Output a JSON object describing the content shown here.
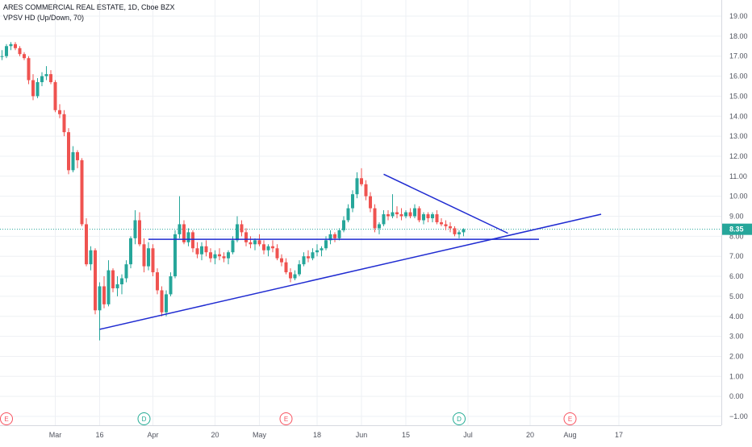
{
  "header": {
    "symbol_title": "ARES COMMERCIAL REAL ESTATE, 1D, Cboe BZX",
    "indicator": "VPSV HD (Up/Down, 70)"
  },
  "price_badge": "8.35",
  "colors": {
    "up": "#26a69a",
    "down": "#ef5350",
    "trendline": "#1f2bd1",
    "grid": "#eef0f4",
    "badge": "#26a69a",
    "axis_text": "#50535e"
  },
  "chart_data": {
    "type": "candlestick",
    "title": "ARES COMMERCIAL REAL ESTATE, 1D, Cboe BZX",
    "ylim": [
      -1.3,
      19.3
    ],
    "y_ticks": [
      -1,
      0,
      1,
      2,
      3,
      4,
      5,
      6,
      7,
      8,
      9,
      10,
      11,
      12,
      13,
      14,
      15,
      16,
      17,
      18,
      19
    ],
    "y_tick_labels": [
      "−1.00",
      "0.00",
      "1.00",
      "2.00",
      "3.00",
      "4.00",
      "5.00",
      "6.00",
      "7.00",
      "8.00",
      "9.00",
      "10.00",
      "11.00",
      "12.00",
      "13.00",
      "14.00",
      "15.00",
      "16.00",
      "17.00",
      "18.00",
      "19.00"
    ],
    "x_ticks": [
      {
        "label": "Mar",
        "bar": 12
      },
      {
        "label": "16",
        "bar": 22
      },
      {
        "label": "Apr",
        "bar": 34
      },
      {
        "label": "20",
        "bar": 48
      },
      {
        "label": "May",
        "bar": 58
      },
      {
        "label": "18",
        "bar": 71
      },
      {
        "label": "Jun",
        "bar": 81
      },
      {
        "label": "15",
        "bar": 91
      },
      {
        "label": "Jul",
        "bar": 105
      },
      {
        "label": "20",
        "bar": 119
      },
      {
        "label": "Aug",
        "bar": 128
      },
      {
        "label": "17",
        "bar": 139
      }
    ],
    "last_price": 8.35,
    "events": [
      {
        "label": "E",
        "bar": 1
      },
      {
        "label": "D",
        "bar": 32
      },
      {
        "label": "E",
        "bar": 64
      },
      {
        "label": "D",
        "bar": 103
      },
      {
        "label": "E",
        "bar": 128
      }
    ],
    "trendlines": [
      {
        "name": "support",
        "from": {
          "bar": 22,
          "price": 3.35
        },
        "to": {
          "bar": 135,
          "price": 9.1
        }
      },
      {
        "name": "resistance",
        "from": {
          "bar": 86,
          "price": 11.1
        },
        "to": {
          "bar": 114,
          "price": 8.15
        }
      },
      {
        "name": "horizontal",
        "from": {
          "bar": 33,
          "price": 7.85
        },
        "to": {
          "bar": 121,
          "price": 7.85
        }
      }
    ],
    "candles": [
      [
        17.0,
        17.3,
        16.8,
        17.0
      ],
      [
        17.0,
        17.6,
        16.9,
        17.5
      ],
      [
        17.5,
        17.7,
        17.3,
        17.6
      ],
      [
        17.6,
        17.7,
        17.3,
        17.4
      ],
      [
        17.4,
        17.5,
        17.0,
        17.1
      ],
      [
        17.1,
        17.2,
        16.8,
        16.9
      ],
      [
        16.9,
        17.0,
        15.6,
        15.8
      ],
      [
        15.8,
        16.1,
        14.8,
        15.0
      ],
      [
        15.0,
        15.9,
        14.9,
        15.7
      ],
      [
        15.7,
        16.2,
        15.5,
        16.0
      ],
      [
        16.0,
        16.5,
        15.8,
        16.1
      ],
      [
        16.1,
        16.3,
        15.6,
        15.7
      ],
      [
        15.7,
        15.8,
        14.2,
        14.3
      ],
      [
        14.3,
        14.6,
        13.9,
        14.1
      ],
      [
        14.1,
        14.3,
        13.0,
        13.2
      ],
      [
        13.2,
        13.4,
        11.1,
        11.3
      ],
      [
        11.3,
        12.5,
        11.2,
        12.2
      ],
      [
        12.2,
        12.3,
        11.4,
        11.8
      ],
      [
        11.8,
        11.9,
        8.5,
        8.6
      ],
      [
        8.6,
        8.9,
        6.5,
        6.6
      ],
      [
        6.6,
        7.5,
        6.3,
        7.3
      ],
      [
        7.3,
        7.4,
        4.1,
        4.3
      ],
      [
        4.3,
        5.7,
        2.8,
        5.5
      ],
      [
        5.5,
        6.0,
        4.4,
        4.6
      ],
      [
        4.6,
        6.8,
        4.5,
        6.3
      ],
      [
        6.3,
        6.4,
        5.2,
        5.4
      ],
      [
        5.4,
        6.0,
        5.0,
        5.6
      ],
      [
        5.6,
        6.1,
        5.1,
        5.9
      ],
      [
        5.9,
        6.8,
        5.7,
        6.6
      ],
      [
        6.6,
        8.0,
        6.4,
        7.9
      ],
      [
        7.9,
        9.3,
        7.6,
        8.8
      ],
      [
        8.8,
        9.2,
        7.5,
        7.6
      ],
      [
        7.6,
        7.9,
        6.2,
        6.5
      ],
      [
        6.5,
        7.7,
        6.3,
        7.4
      ],
      [
        7.4,
        7.6,
        6.0,
        6.2
      ],
      [
        6.2,
        6.4,
        5.1,
        5.3
      ],
      [
        5.3,
        5.5,
        4.0,
        4.2
      ],
      [
        4.2,
        5.3,
        4.0,
        5.1
      ],
      [
        5.1,
        6.2,
        5.0,
        6.0
      ],
      [
        6.0,
        8.3,
        5.9,
        8.1
      ],
      [
        8.1,
        10.0,
        7.9,
        8.6
      ],
      [
        8.6,
        8.8,
        7.6,
        7.7
      ],
      [
        7.7,
        8.4,
        7.5,
        8.2
      ],
      [
        8.2,
        8.3,
        7.2,
        7.4
      ],
      [
        7.4,
        7.7,
        6.9,
        7.1
      ],
      [
        7.1,
        7.7,
        6.8,
        7.5
      ],
      [
        7.5,
        7.8,
        7.0,
        7.2
      ],
      [
        7.2,
        7.4,
        6.7,
        6.9
      ],
      [
        6.9,
        7.3,
        6.6,
        7.1
      ],
      [
        7.1,
        7.4,
        6.8,
        7.0
      ],
      [
        7.0,
        7.2,
        6.7,
        6.9
      ],
      [
        6.9,
        7.3,
        6.6,
        7.2
      ],
      [
        7.2,
        8.0,
        7.1,
        7.8
      ],
      [
        7.8,
        9.0,
        7.7,
        8.6
      ],
      [
        8.6,
        8.8,
        8.0,
        8.2
      ],
      [
        8.2,
        8.4,
        7.5,
        7.7
      ],
      [
        7.7,
        8.0,
        7.4,
        7.6
      ],
      [
        7.6,
        7.9,
        7.3,
        7.8
      ],
      [
        7.8,
        8.1,
        7.5,
        7.6
      ],
      [
        7.6,
        7.8,
        7.1,
        7.3
      ],
      [
        7.3,
        7.6,
        7.0,
        7.5
      ],
      [
        7.5,
        7.8,
        7.2,
        7.4
      ],
      [
        7.4,
        7.6,
        6.8,
        6.9
      ],
      [
        6.9,
        7.1,
        6.5,
        6.7
      ],
      [
        6.7,
        6.9,
        6.1,
        6.2
      ],
      [
        6.2,
        6.4,
        5.7,
        5.9
      ],
      [
        5.9,
        6.3,
        5.8,
        6.1
      ],
      [
        6.1,
        6.8,
        6.0,
        6.6
      ],
      [
        6.6,
        7.2,
        6.5,
        7.0
      ],
      [
        7.0,
        7.3,
        6.7,
        6.9
      ],
      [
        6.9,
        7.4,
        6.8,
        7.2
      ],
      [
        7.2,
        7.6,
        7.0,
        7.3
      ],
      [
        7.3,
        7.5,
        7.0,
        7.4
      ],
      [
        7.4,
        8.0,
        7.3,
        7.8
      ],
      [
        7.8,
        8.3,
        7.6,
        8.1
      ],
      [
        8.1,
        8.2,
        7.7,
        7.9
      ],
      [
        7.9,
        8.4,
        7.8,
        8.3
      ],
      [
        8.3,
        9.0,
        8.2,
        8.8
      ],
      [
        8.8,
        9.6,
        8.7,
        9.4
      ],
      [
        9.4,
        10.3,
        9.2,
        10.1
      ],
      [
        10.1,
        11.2,
        9.9,
        10.9
      ],
      [
        10.9,
        11.4,
        10.5,
        10.6
      ],
      [
        10.6,
        10.8,
        9.8,
        10.0
      ],
      [
        10.0,
        10.2,
        9.2,
        9.4
      ],
      [
        9.4,
        9.6,
        8.2,
        8.4
      ],
      [
        8.4,
        8.7,
        8.1,
        8.6
      ],
      [
        8.6,
        9.3,
        8.5,
        9.1
      ],
      [
        9.1,
        9.3,
        8.8,
        9.0
      ],
      [
        9.0,
        10.1,
        8.9,
        9.2
      ],
      [
        9.2,
        9.5,
        8.9,
        9.1
      ],
      [
        9.1,
        9.4,
        8.8,
        9.0
      ],
      [
        9.0,
        9.3,
        8.9,
        9.2
      ],
      [
        9.2,
        9.4,
        8.9,
        9.0
      ],
      [
        9.0,
        9.6,
        8.9,
        9.4
      ],
      [
        9.4,
        9.5,
        8.7,
        8.8
      ],
      [
        8.8,
        9.2,
        8.6,
        9.1
      ],
      [
        9.1,
        9.2,
        8.7,
        8.9
      ],
      [
        8.9,
        9.2,
        8.7,
        9.1
      ],
      [
        9.1,
        9.3,
        8.6,
        8.7
      ],
      [
        8.7,
        8.9,
        8.5,
        8.6
      ],
      [
        8.6,
        8.8,
        8.3,
        8.5
      ],
      [
        8.5,
        8.7,
        8.2,
        8.4
      ],
      [
        8.4,
        8.5,
        8.0,
        8.1
      ],
      [
        8.1,
        8.3,
        7.9,
        8.2
      ],
      [
        8.2,
        8.4,
        8.0,
        8.35
      ]
    ]
  }
}
